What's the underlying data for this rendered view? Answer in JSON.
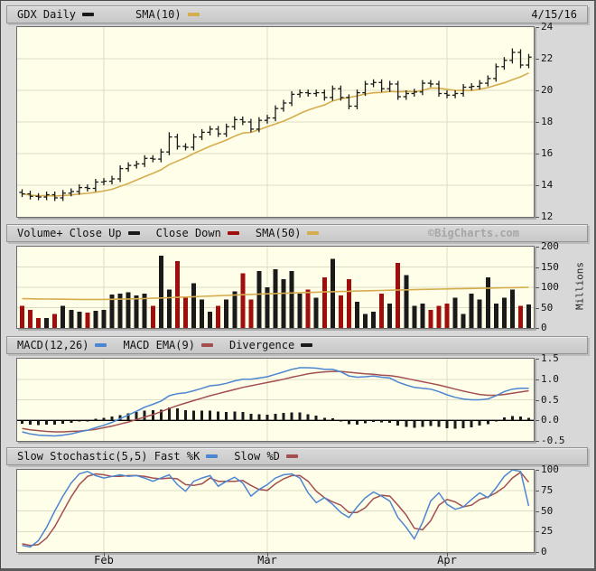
{
  "window": {
    "date_label": "4/15/16",
    "copyright": "©BigCharts.com"
  },
  "colors": {
    "bar": "#1a1a1a",
    "down": "#a00d0d",
    "sma": "#d6ad4e",
    "blue": "#4c86d2",
    "red_line": "#a34f4f",
    "grid": "#dcdcc2",
    "plot_bg": "#fffee9"
  },
  "months": {
    "labels": [
      "Feb",
      "Mar",
      "Apr"
    ],
    "tick_indices": [
      10,
      30,
      52
    ]
  },
  "panels": {
    "price": {
      "legend": [
        {
          "label": "GDX Daily",
          "color": "#1a1a1a"
        },
        {
          "label": "SMA(10)",
          "color": "#d6ad4e"
        }
      ]
    },
    "volume": {
      "legend": [
        {
          "label": "Volume+ Close Up",
          "color": "#1a1a1a"
        },
        {
          "label": "Close Down",
          "color": "#a00d0d"
        },
        {
          "label": "SMA(50)",
          "color": "#d6ad4e"
        }
      ],
      "unit_label": "Millions"
    },
    "macd": {
      "legend": [
        {
          "label": "MACD(12,26)",
          "color": "#4c86d2"
        },
        {
          "label": "MACD EMA(9)",
          "color": "#a34f4f"
        },
        {
          "label": "Divergence",
          "color": "#1a1a1a"
        }
      ]
    },
    "stoch": {
      "legend": [
        {
          "label": "Slow Stochastic(5,5) Fast %K",
          "color": "#4c86d2"
        },
        {
          "label": "Slow %D",
          "color": "#a34f4f"
        }
      ]
    }
  },
  "chart_data": [
    {
      "panel": "price",
      "type": "ohlc",
      "name": "GDX Daily",
      "overlay_name": "SMA(10)",
      "ylim": [
        12,
        24
      ],
      "yticks": [
        "24",
        "22",
        "20",
        "18",
        "16",
        "14",
        "12"
      ],
      "open": [
        13.55,
        13.45,
        13.3,
        13.25,
        13.4,
        13.2,
        13.5,
        13.6,
        13.85,
        13.8,
        14.2,
        14.25,
        14.4,
        15.05,
        15.25,
        15.35,
        15.7,
        15.65,
        16.1,
        17.05,
        16.45,
        16.4,
        17.05,
        17.35,
        17.55,
        17.25,
        17.7,
        18.15,
        18.0,
        17.55,
        18.1,
        18.25,
        18.85,
        19.2,
        19.75,
        19.85,
        19.8,
        19.85,
        19.55,
        20.1,
        19.55,
        19.0,
        19.85,
        20.4,
        20.5,
        20.1,
        20.4,
        19.6,
        19.8,
        19.9,
        20.45,
        20.4,
        19.8,
        19.7,
        19.8,
        20.2,
        20.25,
        20.45,
        20.75,
        21.5,
        21.9,
        22.4,
        21.6
      ],
      "high": [
        13.75,
        13.65,
        13.5,
        13.6,
        13.6,
        13.7,
        13.8,
        14.05,
        14.05,
        14.4,
        14.45,
        14.6,
        15.25,
        15.45,
        15.55,
        15.9,
        15.9,
        16.3,
        17.35,
        17.25,
        16.65,
        17.25,
        17.55,
        17.75,
        17.75,
        17.9,
        18.35,
        18.35,
        18.2,
        18.3,
        18.45,
        19.05,
        19.4,
        19.95,
        20.05,
        20.05,
        20.05,
        20.05,
        20.3,
        20.3,
        19.75,
        20.05,
        20.6,
        20.7,
        20.7,
        20.6,
        20.6,
        20.0,
        20.1,
        20.65,
        20.65,
        20.6,
        20.0,
        20.0,
        20.4,
        20.45,
        20.65,
        20.95,
        21.7,
        22.1,
        22.65,
        22.6,
        22.3
      ],
      "low": [
        13.25,
        13.1,
        13.05,
        13.05,
        13.0,
        13.0,
        13.3,
        13.4,
        13.6,
        13.6,
        14.0,
        14.05,
        14.2,
        14.85,
        15.05,
        15.15,
        15.45,
        15.45,
        15.9,
        16.25,
        16.2,
        16.2,
        16.85,
        17.15,
        17.05,
        17.05,
        17.5,
        17.8,
        17.35,
        17.35,
        17.9,
        18.05,
        18.65,
        19.0,
        19.55,
        19.6,
        19.6,
        19.35,
        19.35,
        19.35,
        18.8,
        18.8,
        19.65,
        20.2,
        19.9,
        19.9,
        19.4,
        19.4,
        19.6,
        19.7,
        20.2,
        19.6,
        19.5,
        19.5,
        19.6,
        20.0,
        20.05,
        20.25,
        20.55,
        21.3,
        21.7,
        21.4,
        21.4
      ],
      "close": [
        13.45,
        13.3,
        13.25,
        13.4,
        13.2,
        13.5,
        13.6,
        13.85,
        13.8,
        14.2,
        14.25,
        14.4,
        15.05,
        15.25,
        15.35,
        15.7,
        15.65,
        16.1,
        17.05,
        16.45,
        16.4,
        17.05,
        17.35,
        17.55,
        17.25,
        17.7,
        18.15,
        18.0,
        17.55,
        18.1,
        18.25,
        18.85,
        19.2,
        19.75,
        19.85,
        19.8,
        19.85,
        19.55,
        20.1,
        19.55,
        19.0,
        19.85,
        20.4,
        20.5,
        20.1,
        20.4,
        19.6,
        19.8,
        19.9,
        20.45,
        20.4,
        19.8,
        19.7,
        19.8,
        20.2,
        20.25,
        20.45,
        20.75,
        21.5,
        21.9,
        22.4,
        21.6,
        22.1
      ]
    },
    {
      "panel": "volume",
      "type": "bar",
      "series_up": "Close Up",
      "series_down": "Close Down",
      "overlay_name": "SMA(50)",
      "unit": "Millions",
      "ylim": [
        0,
        200
      ],
      "yticks": [
        "200",
        "150",
        "100",
        "50",
        "0"
      ],
      "values": [
        55,
        45,
        25,
        25,
        35,
        55,
        45,
        40,
        38,
        42,
        45,
        82,
        85,
        88,
        80,
        85,
        55,
        178,
        95,
        165,
        75,
        110,
        70,
        40,
        55,
        70,
        90,
        135,
        70,
        140,
        100,
        145,
        120,
        140,
        85,
        95,
        75,
        125,
        170,
        80,
        120,
        65,
        35,
        40,
        85,
        60,
        160,
        130,
        55,
        60,
        45,
        55,
        60,
        75,
        35,
        85,
        70,
        125,
        60,
        75,
        95,
        55,
        58
      ],
      "up_down": [
        "d",
        "d",
        "d",
        "u",
        "d",
        "u",
        "u",
        "u",
        "d",
        "u",
        "u",
        "u",
        "u",
        "u",
        "u",
        "u",
        "d",
        "u",
        "u",
        "d",
        "d",
        "u",
        "u",
        "u",
        "d",
        "u",
        "u",
        "d",
        "d",
        "u",
        "u",
        "u",
        "u",
        "u",
        "u",
        "d",
        "u",
        "d",
        "u",
        "d",
        "d",
        "u",
        "u",
        "u",
        "d",
        "u",
        "d",
        "u",
        "u",
        "u",
        "d",
        "d",
        "d",
        "u",
        "u",
        "u",
        "u",
        "u",
        "u",
        "u",
        "u",
        "d",
        "u"
      ],
      "sma50": [
        72,
        71.7,
        71.4,
        71.1,
        70.8,
        70.6,
        70.4,
        70.3,
        70.2,
        70.2,
        70.3,
        70.5,
        70.8,
        71.2,
        71.7,
        72.3,
        73,
        73.7,
        74.5,
        75.3,
        76.1,
        76.9,
        77.7,
        78.5,
        79.3,
        80.1,
        80.9,
        81.7,
        82.5,
        83.3,
        84,
        84.7,
        85.4,
        86.1,
        86.8,
        87.4,
        88,
        88.6,
        89.2,
        89.8,
        90.3,
        90.8,
        91.3,
        91.8,
        92.3,
        92.8,
        93.3,
        93.8,
        94.3,
        94.8,
        95.2,
        95.6,
        96,
        96.4,
        96.8,
        97.2,
        97.6,
        98,
        98.4,
        98.8,
        99.2,
        99.6,
        100
      ]
    },
    {
      "panel": "macd",
      "type": "line+histogram",
      "series": [
        "MACD(12,26)",
        "MACD EMA(9)",
        "Divergence"
      ],
      "zero_line": true,
      "ylim": [
        -0.5,
        1.5
      ],
      "yticks": [
        "1.5",
        "1.0",
        "0.5",
        "0.0",
        "-0.5"
      ],
      "macd": [
        -0.28,
        -0.33,
        -0.36,
        -0.37,
        -0.38,
        -0.36,
        -0.33,
        -0.28,
        -0.24,
        -0.18,
        -0.12,
        -0.05,
        0.04,
        0.13,
        0.22,
        0.32,
        0.39,
        0.47,
        0.6,
        0.65,
        0.67,
        0.72,
        0.78,
        0.84,
        0.86,
        0.9,
        0.96,
        1.0,
        1.0,
        1.03,
        1.06,
        1.12,
        1.18,
        1.24,
        1.28,
        1.28,
        1.27,
        1.24,
        1.24,
        1.18,
        1.08,
        1.05,
        1.06,
        1.08,
        1.05,
        1.03,
        0.93,
        0.86,
        0.8,
        0.78,
        0.76,
        0.7,
        0.62,
        0.56,
        0.52,
        0.5,
        0.5,
        0.52,
        0.6,
        0.7,
        0.76,
        0.78,
        0.78
      ],
      "signal": [
        -0.2,
        -0.23,
        -0.25,
        -0.27,
        -0.28,
        -0.28,
        -0.27,
        -0.26,
        -0.24,
        -0.22,
        -0.18,
        -0.14,
        -0.09,
        -0.04,
        0.02,
        0.08,
        0.14,
        0.21,
        0.29,
        0.36,
        0.42,
        0.48,
        0.54,
        0.6,
        0.65,
        0.7,
        0.75,
        0.8,
        0.84,
        0.88,
        0.92,
        0.96,
        1.0,
        1.05,
        1.09,
        1.13,
        1.16,
        1.18,
        1.19,
        1.19,
        1.17,
        1.15,
        1.13,
        1.12,
        1.1,
        1.09,
        1.06,
        1.02,
        0.98,
        0.94,
        0.9,
        0.86,
        0.81,
        0.76,
        0.71,
        0.67,
        0.63,
        0.61,
        0.61,
        0.63,
        0.66,
        0.69,
        0.72
      ],
      "histogram": [
        -0.08,
        -0.1,
        -0.11,
        -0.1,
        -0.1,
        -0.08,
        -0.06,
        -0.02,
        0.0,
        0.04,
        0.06,
        0.09,
        0.13,
        0.17,
        0.2,
        0.24,
        0.25,
        0.26,
        0.31,
        0.29,
        0.25,
        0.24,
        0.24,
        0.24,
        0.21,
        0.2,
        0.21,
        0.2,
        0.16,
        0.15,
        0.14,
        0.16,
        0.18,
        0.19,
        0.19,
        0.15,
        0.11,
        0.06,
        0.05,
        -0.01,
        -0.09,
        -0.1,
        -0.07,
        -0.04,
        -0.05,
        -0.06,
        -0.13,
        -0.16,
        -0.18,
        -0.16,
        -0.14,
        -0.16,
        -0.19,
        -0.2,
        -0.19,
        -0.17,
        -0.13,
        -0.09,
        -0.01,
        0.07,
        0.1,
        0.09,
        0.06
      ]
    },
    {
      "panel": "stoch",
      "type": "line",
      "series": [
        "Fast %K",
        "Slow %D"
      ],
      "ylim": [
        0,
        100
      ],
      "yticks": [
        "100",
        "75",
        "50",
        "25",
        "0"
      ],
      "fast_k": [
        8,
        6,
        14,
        30,
        50,
        68,
        84,
        95,
        98,
        93,
        90,
        92,
        94,
        92,
        93,
        90,
        86,
        90,
        94,
        82,
        74,
        86,
        90,
        93,
        80,
        86,
        91,
        84,
        68,
        76,
        82,
        90,
        94,
        95,
        90,
        72,
        60,
        66,
        58,
        48,
        42,
        55,
        66,
        73,
        68,
        62,
        42,
        30,
        16,
        36,
        62,
        72,
        58,
        52,
        55,
        64,
        72,
        66,
        78,
        92,
        100,
        98,
        56
      ],
      "slow_d": [
        10,
        8,
        9,
        17,
        31,
        49,
        67,
        82,
        92,
        95,
        94,
        92,
        92,
        93,
        93,
        92,
        90,
        89,
        90,
        89,
        82,
        81,
        83,
        90,
        86,
        86,
        86,
        87,
        81,
        76,
        75,
        83,
        89,
        93,
        93,
        86,
        74,
        66,
        61,
        57,
        48,
        48,
        54,
        65,
        69,
        68,
        57,
        45,
        29,
        27,
        38,
        57,
        64,
        61,
        55,
        57,
        64,
        67,
        72,
        79,
        90,
        97,
        85
      ]
    }
  ]
}
